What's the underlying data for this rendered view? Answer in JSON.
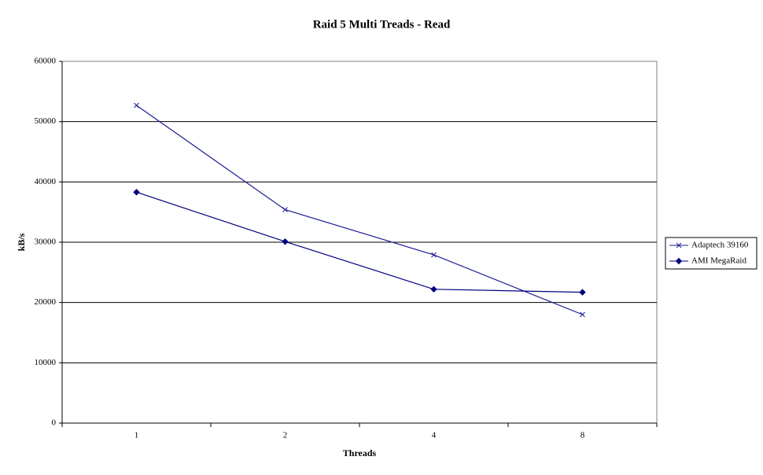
{
  "chart_data": {
    "type": "line",
    "title": "Raid 5 Multi Treads - Read",
    "x_label": "Threads",
    "y_label": "kB/s",
    "categories": [
      "1",
      "2",
      "4",
      "8"
    ],
    "series": [
      {
        "name": "Adaptech 39160",
        "color": "#1c1c96",
        "marker": "x",
        "values": [
          52700,
          35400,
          27900,
          18000
        ]
      },
      {
        "name": "AMI MegaRaid",
        "color": "#000080",
        "marker": "diamond",
        "values": [
          38300,
          30100,
          22200,
          21700
        ]
      }
    ],
    "ylim": [
      0,
      60000
    ],
    "yticks": [
      0,
      10000,
      20000,
      30000,
      40000,
      50000,
      60000
    ],
    "grid": true,
    "legend": "right"
  }
}
